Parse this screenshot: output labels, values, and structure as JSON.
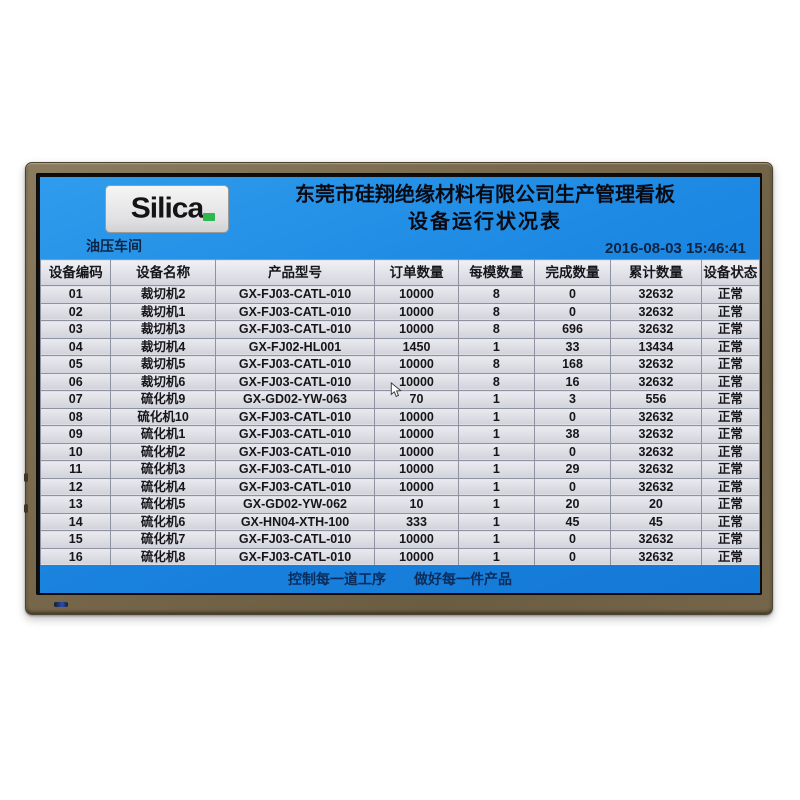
{
  "brand": {
    "logo_text": "Silica"
  },
  "header": {
    "title_line1": "东莞市硅翔绝缘材料有限公司生产管理看板",
    "title_line2": "设备运行状况表",
    "workshop_label": "油压车间",
    "datetime": "2016-08-03 15:46:41"
  },
  "table": {
    "columns": [
      "设备编码",
      "设备名称",
      "产品型号",
      "订单数量",
      "每模数量",
      "完成数量",
      "累计数量",
      "设备状态"
    ],
    "rows": [
      [
        "01",
        "裁切机2",
        "GX-FJ03-CATL-010",
        "10000",
        "8",
        "0",
        "32632",
        "正常"
      ],
      [
        "02",
        "裁切机1",
        "GX-FJ03-CATL-010",
        "10000",
        "8",
        "0",
        "32632",
        "正常"
      ],
      [
        "03",
        "裁切机3",
        "GX-FJ03-CATL-010",
        "10000",
        "8",
        "696",
        "32632",
        "正常"
      ],
      [
        "04",
        "裁切机4",
        "GX-FJ02-HL001",
        "1450",
        "1",
        "33",
        "13434",
        "正常"
      ],
      [
        "05",
        "裁切机5",
        "GX-FJ03-CATL-010",
        "10000",
        "8",
        "168",
        "32632",
        "正常"
      ],
      [
        "06",
        "裁切机6",
        "GX-FJ03-CATL-010",
        "10000",
        "8",
        "16",
        "32632",
        "正常"
      ],
      [
        "07",
        "硫化机9",
        "GX-GD02-YW-063",
        "70",
        "1",
        "3",
        "556",
        "正常"
      ],
      [
        "08",
        "硫化机10",
        "GX-FJ03-CATL-010",
        "10000",
        "1",
        "0",
        "32632",
        "正常"
      ],
      [
        "09",
        "硫化机1",
        "GX-FJ03-CATL-010",
        "10000",
        "1",
        "38",
        "32632",
        "正常"
      ],
      [
        "10",
        "硫化机2",
        "GX-FJ03-CATL-010",
        "10000",
        "1",
        "0",
        "32632",
        "正常"
      ],
      [
        "11",
        "硫化机3",
        "GX-FJ03-CATL-010",
        "10000",
        "1",
        "29",
        "32632",
        "正常"
      ],
      [
        "12",
        "硫化机4",
        "GX-FJ03-CATL-010",
        "10000",
        "1",
        "0",
        "32632",
        "正常"
      ],
      [
        "13",
        "硫化机5",
        "GX-GD02-YW-062",
        "10",
        "1",
        "20",
        "20",
        "正常"
      ],
      [
        "14",
        "硫化机6",
        "GX-HN04-XTH-100",
        "333",
        "1",
        "45",
        "45",
        "正常"
      ],
      [
        "15",
        "硫化机7",
        "GX-FJ03-CATL-010",
        "10000",
        "1",
        "0",
        "32632",
        "正常"
      ],
      [
        "16",
        "硫化机8",
        "GX-FJ03-CATL-010",
        "10000",
        "1",
        "0",
        "32632",
        "正常"
      ]
    ]
  },
  "footer": {
    "slogan": "控制每一道工序　　做好每一件产品"
  },
  "colors": {
    "screen_blue": "#1d89e3",
    "bezel_bronze": "#7a6a4d",
    "logo_green": "#2db84d",
    "row_background": "#d8d8e0",
    "dark_navy_text": "#0d2342"
  }
}
